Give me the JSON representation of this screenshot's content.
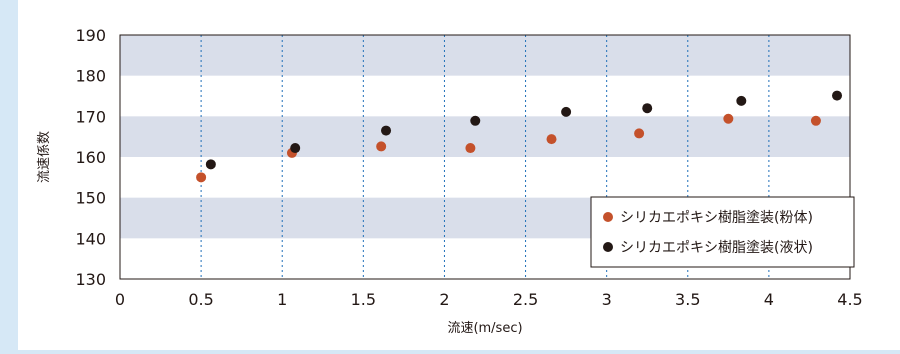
{
  "chart_data": {
    "type": "scatter",
    "xlabel": "流速(m/sec)",
    "ylabel": "流速係数",
    "xlim": [
      0,
      4.5
    ],
    "ylim": [
      130,
      190
    ],
    "x_ticks": [
      "0",
      "0.5",
      "1",
      "1.5",
      "2",
      "2.5",
      "3",
      "3.5",
      "4",
      "4.5"
    ],
    "y_ticks": [
      "130",
      "140",
      "150",
      "160",
      "170",
      "180",
      "190"
    ],
    "grid": "horizontal alternating bands, vertical dotted lines",
    "legend_position": "bottom-right",
    "series": [
      {
        "name": "シリカエポキシ樹脂塗装(粉体)",
        "color": "#c4512b",
        "points": [
          {
            "x": 0.5,
            "y": 155.0
          },
          {
            "x": 1.06,
            "y": 161.0
          },
          {
            "x": 1.61,
            "y": 162.6
          },
          {
            "x": 2.16,
            "y": 162.2
          },
          {
            "x": 2.66,
            "y": 164.4
          },
          {
            "x": 3.2,
            "y": 165.8
          },
          {
            "x": 3.75,
            "y": 169.4
          },
          {
            "x": 4.29,
            "y": 168.9
          }
        ]
      },
      {
        "name": "シリカエポキシ樹脂塗装(液状)",
        "color": "#231815",
        "points": [
          {
            "x": 0.56,
            "y": 158.2
          },
          {
            "x": 1.08,
            "y": 162.2
          },
          {
            "x": 1.64,
            "y": 166.5
          },
          {
            "x": 2.19,
            "y": 168.9
          },
          {
            "x": 2.75,
            "y": 171.1
          },
          {
            "x": 3.25,
            "y": 172.0
          },
          {
            "x": 3.83,
            "y": 173.8
          },
          {
            "x": 4.42,
            "y": 175.1
          }
        ]
      }
    ]
  }
}
